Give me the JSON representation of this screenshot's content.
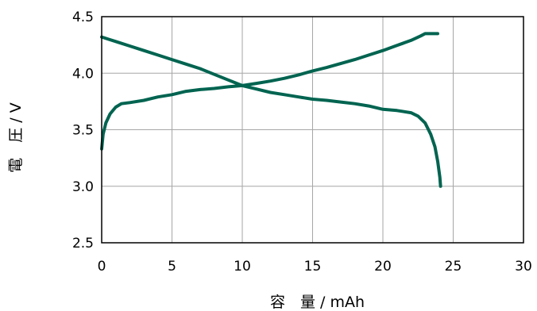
{
  "chart_data": {
    "type": "line",
    "xlabel": "容　量 / mAh",
    "ylabel": "電　圧 / V",
    "xlim": [
      0,
      30
    ],
    "ylim": [
      2.5,
      4.5
    ],
    "x_ticks": [
      "0",
      "5",
      "10",
      "15",
      "20",
      "25",
      "30"
    ],
    "y_ticks": [
      "2.5",
      "3.0",
      "3.5",
      "4.0",
      "4.5"
    ],
    "grid": true,
    "line_color": "#006450",
    "series": [
      {
        "x": [
          0,
          0.1,
          0.3,
          0.6,
          1.0,
          1.4,
          2.0,
          3.0,
          4.0,
          5.0,
          6.0,
          7.0,
          8.0,
          9.0,
          10.0,
          11.0,
          12.0,
          13.0,
          14.0,
          15.0,
          16.0,
          17.0,
          18.0,
          19.0,
          20.0,
          21.0,
          22.0,
          22.7,
          23.0,
          23.5,
          23.9
        ],
        "y": [
          3.33,
          3.46,
          3.56,
          3.64,
          3.7,
          3.73,
          3.74,
          3.76,
          3.79,
          3.81,
          3.84,
          3.855,
          3.865,
          3.88,
          3.89,
          3.91,
          3.93,
          3.955,
          3.985,
          4.02,
          4.05,
          4.085,
          4.12,
          4.16,
          4.2,
          4.245,
          4.29,
          4.33,
          4.35,
          4.35,
          4.35
        ]
      },
      {
        "x": [
          0,
          0.5,
          1.0,
          2.0,
          3.0,
          4.0,
          5.0,
          6.0,
          7.0,
          8.0,
          9.0,
          10.0,
          11.0,
          12.0,
          13.0,
          14.0,
          15.0,
          16.0,
          17.0,
          18.0,
          19.0,
          20.0,
          21.0,
          22.0,
          22.5,
          23.0,
          23.4,
          23.7,
          23.9,
          24.05,
          24.1
        ],
        "y": [
          4.32,
          4.3,
          4.28,
          4.24,
          4.2,
          4.16,
          4.12,
          4.08,
          4.04,
          3.99,
          3.94,
          3.89,
          3.86,
          3.83,
          3.81,
          3.79,
          3.77,
          3.76,
          3.745,
          3.73,
          3.71,
          3.68,
          3.67,
          3.65,
          3.62,
          3.56,
          3.46,
          3.35,
          3.22,
          3.08,
          3.0
        ]
      }
    ]
  }
}
